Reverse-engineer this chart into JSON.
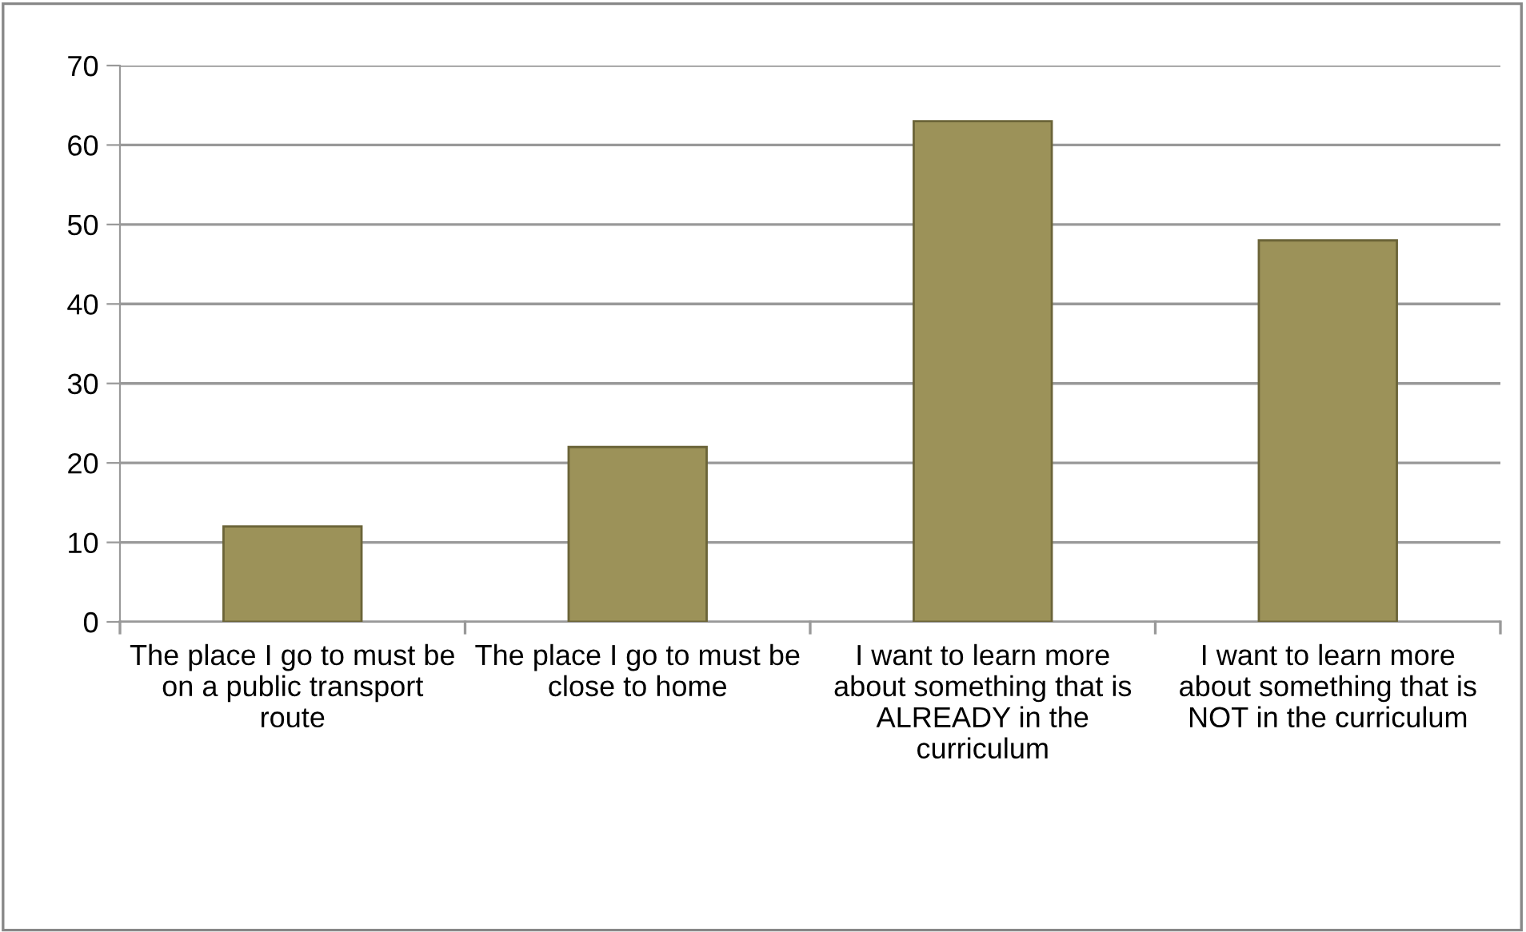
{
  "chart_data": {
    "type": "bar",
    "categories": [
      "The place I go to must be on a public transport route",
      "The place I go to must be close to home",
      "I want to learn more about something that is ALREADY in the curriculum",
      "I want to learn more about something that is NOT in the curriculum"
    ],
    "values": [
      12,
      22,
      63,
      48
    ],
    "color": "#9c9259",
    "ylim": [
      0,
      70
    ],
    "yticks": [
      0,
      10,
      20,
      30,
      40,
      50,
      60,
      70
    ],
    "grid": "y",
    "legend": false
  }
}
